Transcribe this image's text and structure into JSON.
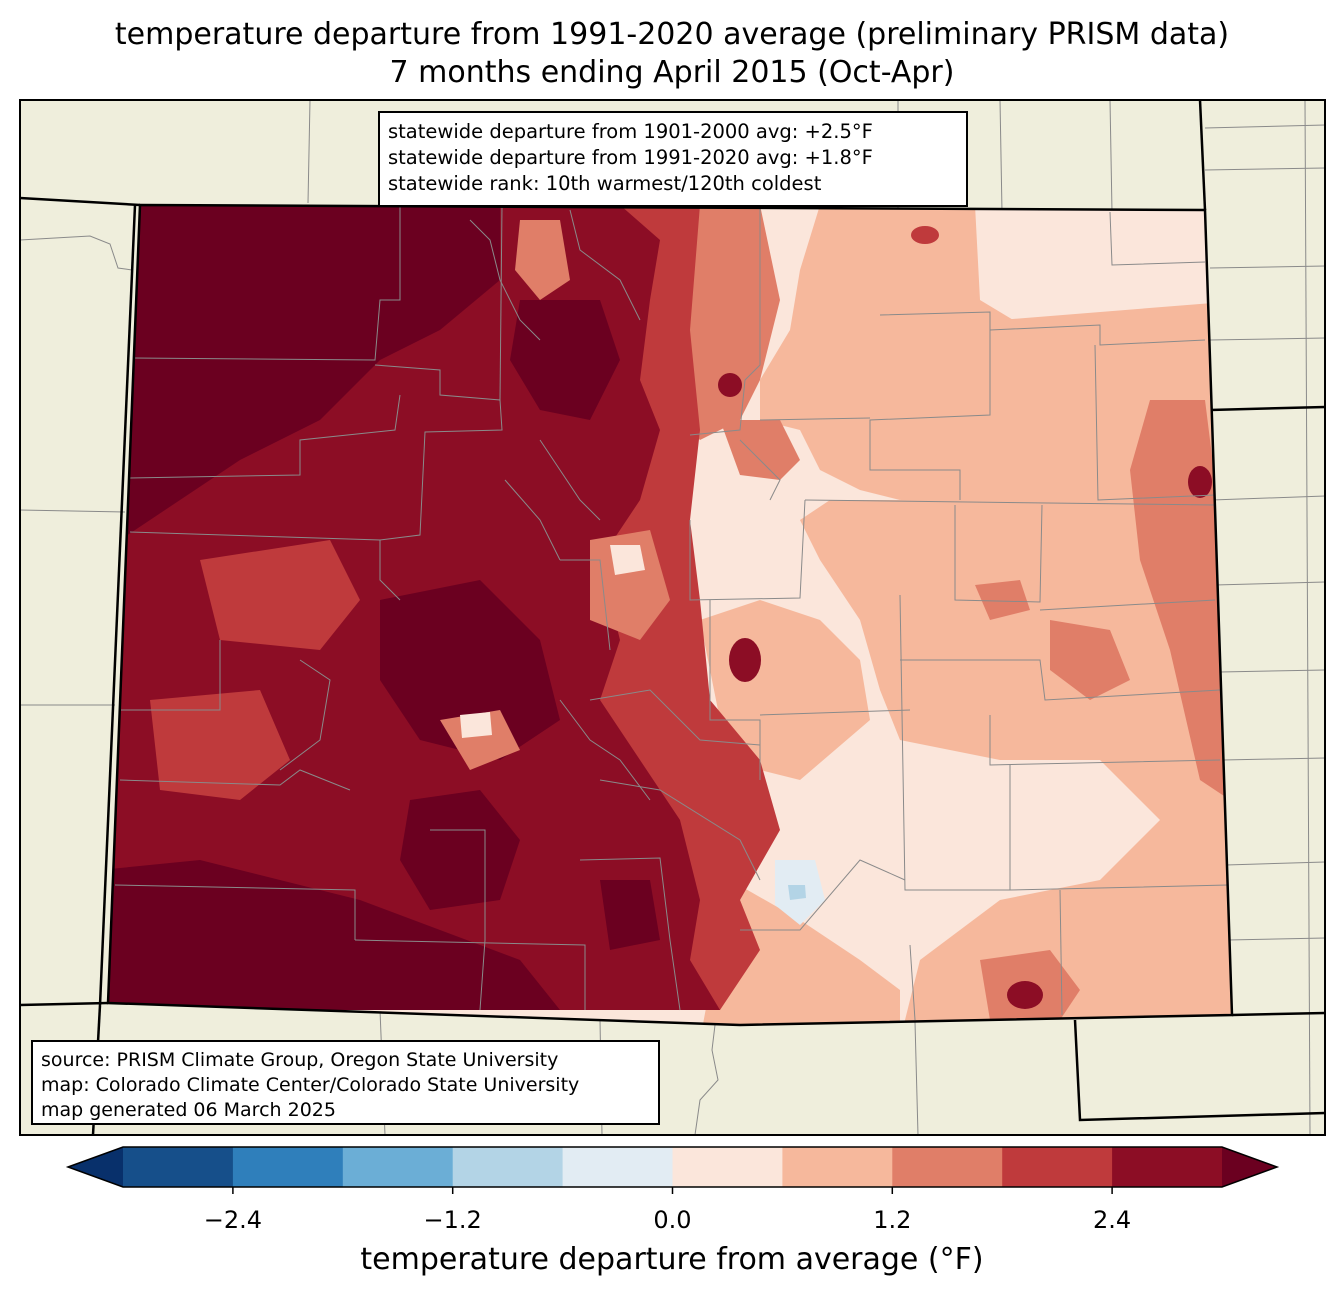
{
  "title_line1": "temperature departure from 1991-2020 average (preliminary PRISM data)",
  "title_line2": "7 months ending April 2015 (Oct-Apr)",
  "stats": [
    "statewide departure from 1901-2000 avg: +2.5°F",
    "statewide departure from 1991-2020 avg: +1.8°F",
    "statewide rank: 10th warmest/120th coldest"
  ],
  "source": [
    "source: PRISM Climate Group, Oregon State University",
    "map: Colorado Climate Center/Colorado State University",
    "map generated 06 March 2025"
  ],
  "colorbar": {
    "label": "temperature departure from average (°F)",
    "ticks": [
      "−2.4",
      "−1.2",
      "0.0",
      "1.2",
      "2.4"
    ],
    "tick_values": [
      -2.4,
      -1.2,
      0.0,
      1.2,
      2.4
    ],
    "range": [
      -3.0,
      3.0
    ],
    "extend": "both",
    "colors": [
      "#08306b",
      "#164f8a",
      "#2f7fbb",
      "#6baed6",
      "#b3d4e6",
      "#e2ecf3",
      "#fbe6db",
      "#f6b89c",
      "#e07e68",
      "#bf3a3c",
      "#8c0d25",
      "#6b0020"
    ]
  },
  "map_colors": {
    "land": "#efeedc",
    "darkest": "#6b0020",
    "dark": "#8c0d25",
    "red": "#bf3a3c",
    "salmon": "#e07e68",
    "peach": "#f6b89c",
    "pale": "#fbe6db",
    "ice": "#e2ecf3",
    "lightblue": "#b3d4e6"
  }
}
